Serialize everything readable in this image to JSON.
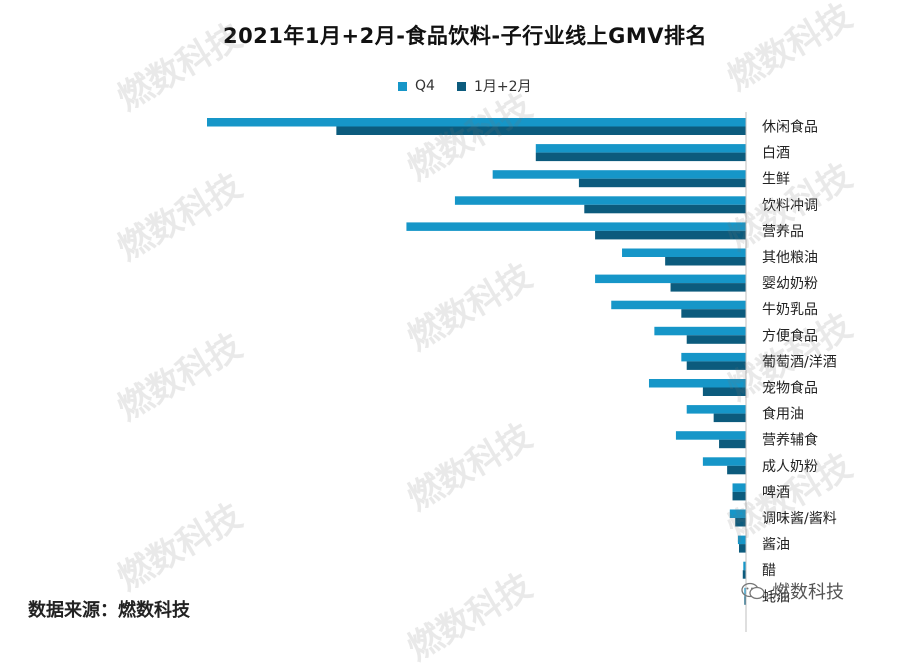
{
  "chart_data": {
    "type": "bar",
    "orientation": "horizontal",
    "title": "2021年1月+2月-食品饮料-子行业线上GMV排名",
    "categories": [
      "休闲食品",
      "白酒",
      "生鲜",
      "饮料冲调",
      "营养品",
      "其他粮油",
      "婴幼奶粉",
      "牛奶乳品",
      "方便食品",
      "葡萄酒/洋酒",
      "宠物食品",
      "食用油",
      "营养辅食",
      "成人奶粉",
      "啤酒",
      "调味酱/酱料",
      "酱油",
      "醋",
      "蚝油"
    ],
    "series": [
      {
        "name": "Q4",
        "color": "#1696c8",
        "values": [
          100,
          39,
          47,
          54,
          63,
          23,
          28,
          25,
          17,
          12,
          18,
          11,
          13,
          8,
          2.5,
          3,
          1.5,
          0.5,
          0.3
        ]
      },
      {
        "name": "1月+2月",
        "color": "#0c5b7d",
        "values": [
          76,
          39,
          31,
          30,
          28,
          15,
          14,
          12,
          11,
          11,
          8,
          6,
          5,
          3.5,
          2.5,
          2,
          1.3,
          0.6,
          0.3
        ]
      }
    ],
    "xlim": [
      0,
      100
    ],
    "legend_position": "top",
    "grid": false
  },
  "source_note": "数据来源：燃数科技",
  "watermark_text": "燃数科技"
}
